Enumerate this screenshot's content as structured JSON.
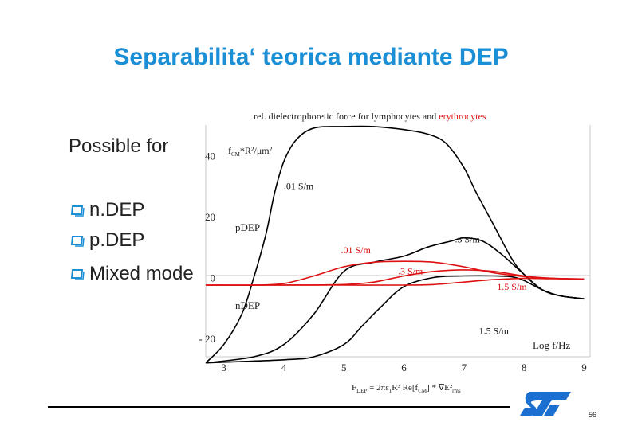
{
  "slide": {
    "title": "Separabilita‘ teorica mediante DEP",
    "intro": "Possible for",
    "bullets": [
      "n.DEP",
      "p.DEP",
      "Mixed mode"
    ],
    "page_number": "56"
  },
  "colors": {
    "title": "#1b8fd6",
    "lymphocytes": "#000000",
    "erythrocytes": "#dd1111",
    "axis": "#c8c8c8"
  },
  "logo": {
    "icon": "st-logo-icon"
  },
  "chart_data": {
    "type": "line",
    "title_prefix": "rel. dielectrophoretic force for lymphocytes and ",
    "title_highlight": "erythrocytes",
    "ylabel": "f_CM*R²/μm²",
    "xlabel": "Log f/Hz",
    "xlim": [
      2.7,
      9.1
    ],
    "ylim": [
      -26,
      50
    ],
    "x_ticks": [
      "3",
      "4",
      "5",
      "6",
      "7",
      "8",
      "9"
    ],
    "y_ticks": [
      {
        "value": 40,
        "label": "40"
      },
      {
        "value": 20,
        "label": "20"
      },
      {
        "value": 0,
        "label": "0"
      },
      {
        "value": -20,
        "label": "- 20"
      }
    ],
    "region_labels": {
      "pdep": "pDEP",
      "ndep": "nDEP"
    },
    "formula": "F_DEP = 2πε₁R³ Re[f_CM] * ∇E²rms",
    "series": [
      {
        "name": ".01 S/m",
        "group": "lymphocytes",
        "x": [
          2.7,
          3.0,
          3.3,
          3.5,
          3.7,
          3.85,
          4.0,
          4.2,
          4.5,
          5.0,
          5.5,
          6.0,
          6.4,
          6.7,
          7.0,
          7.2,
          7.5,
          7.8,
          8.0,
          8.3,
          8.6,
          9.0
        ],
        "y": [
          -28,
          -22,
          -12,
          0,
          14,
          28,
          38,
          45,
          49,
          49.5,
          49.5,
          48.5,
          47,
          44,
          36,
          28,
          17,
          6,
          1,
          -4,
          -6,
          -7
        ]
      },
      {
        "name": ".3 S/m",
        "group": "lymphocytes",
        "x": [
          2.7,
          3.5,
          4.0,
          4.5,
          5.0,
          5.5,
          6.0,
          6.4,
          6.8,
          7.0,
          7.3,
          7.6,
          8.0,
          8.3,
          8.6,
          9.0
        ],
        "y": [
          -28,
          -26,
          -22,
          -12,
          2,
          5,
          7,
          10,
          12,
          13,
          12,
          8,
          1,
          -4,
          -6,
          -7
        ]
      },
      {
        "name": "1.5 S/m",
        "group": "lymphocytes",
        "x": [
          2.7,
          4.0,
          4.5,
          5.0,
          5.3,
          5.6,
          6.0,
          6.5,
          7.0,
          7.5,
          7.8,
          8.0,
          8.3,
          8.6,
          9.0
        ],
        "y": [
          -28,
          -27,
          -26,
          -22,
          -16,
          -10,
          -3,
          0,
          0.5,
          0.5,
          0.2,
          -1,
          -4,
          -6,
          -7
        ]
      },
      {
        "name": ".01 S/m",
        "group": "erythrocytes",
        "x": [
          2.7,
          3.5,
          4.0,
          4.5,
          5.0,
          5.5,
          6.0,
          6.5,
          7.0,
          7.5,
          8.0,
          8.5,
          9.0
        ],
        "y": [
          -2.5,
          -2.5,
          -2.0,
          0.5,
          3.5,
          5.0,
          5.3,
          5.0,
          3.5,
          1.5,
          0.3,
          -0.3,
          -0.5
        ]
      },
      {
        "name": ".3 S/m",
        "group": "erythrocytes",
        "x": [
          2.7,
          4.0,
          5.0,
          5.5,
          6.0,
          6.5,
          7.0,
          7.5,
          8.0,
          8.5,
          9.0
        ],
        "y": [
          -2.5,
          -2.5,
          -2.3,
          -1.5,
          0.5,
          2.0,
          2.5,
          2.0,
          0.5,
          -0.3,
          -0.5
        ]
      },
      {
        "name": "1.5 S/m",
        "group": "erythrocytes",
        "x": [
          2.7,
          4.0,
          5.0,
          6.0,
          6.5,
          7.0,
          7.5,
          8.0,
          8.5,
          9.0
        ],
        "y": [
          -2.5,
          -2.5,
          -2.5,
          -2.5,
          -2.3,
          -1.5,
          -0.7,
          -0.3,
          -0.4,
          -0.5
        ]
      }
    ],
    "series_labels": [
      {
        "text": ".01 S/m",
        "x": 4.0,
        "y": 29,
        "color": "black"
      },
      {
        "text": ".3 S/m",
        "x": 6.85,
        "y": 11.5,
        "color": "black"
      },
      {
        "text": "1.5 S/m",
        "x": 7.25,
        "y": -18.5,
        "color": "black"
      },
      {
        "text": ".01 S/m",
        "x": 4.95,
        "y": 8,
        "color": "red"
      },
      {
        "text": ".3 S/m",
        "x": 5.9,
        "y": 1,
        "color": "red"
      },
      {
        "text": "1.5 S/m",
        "x": 7.55,
        "y": -4,
        "color": "red"
      }
    ]
  }
}
